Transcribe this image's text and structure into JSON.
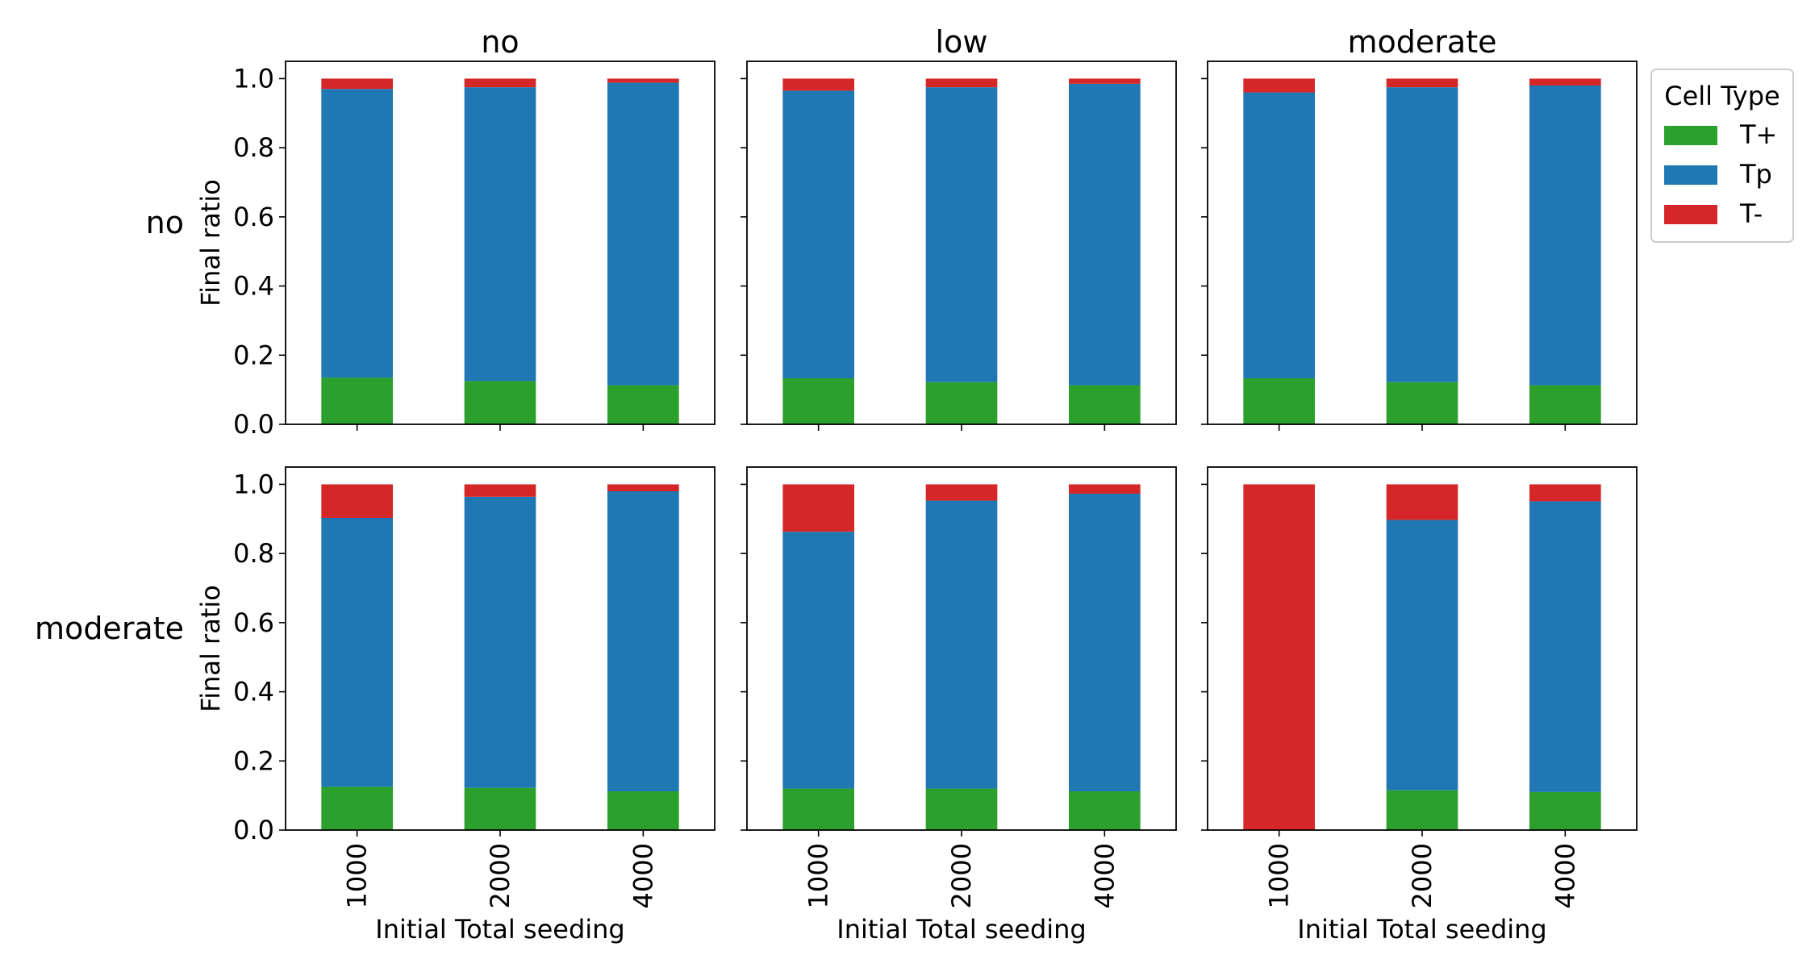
{
  "chart_data": {
    "type": "bar",
    "stacked": true,
    "categories": [
      "1000",
      "2000",
      "4000"
    ],
    "xlabel": "Initial Total seeding",
    "ylabel": "Final ratio",
    "ylim": [
      0,
      1.05
    ],
    "yticks": [
      "0.0",
      "0.2",
      "0.4",
      "0.6",
      "0.8",
      "1.0"
    ],
    "column_titles": [
      "no",
      "low",
      "moderate"
    ],
    "row_titles": [
      "no",
      "moderate"
    ],
    "legend": {
      "title": "Cell Type",
      "placement": "right, outside top",
      "entries": [
        {
          "name": "T+",
          "color": "#2ca02c"
        },
        {
          "name": "Tp",
          "color": "#1f77b4"
        },
        {
          "name": "T-",
          "color": "#d62728"
        }
      ]
    },
    "panels": [
      {
        "row": "no",
        "col": "no",
        "series": [
          {
            "name": "T+",
            "values": [
              0.135,
              0.125,
              0.113
            ]
          },
          {
            "name": "Tp",
            "values": [
              0.835,
              0.85,
              0.875
            ]
          },
          {
            "name": "T-",
            "values": [
              0.03,
              0.025,
              0.012
            ]
          }
        ]
      },
      {
        "row": "no",
        "col": "low",
        "series": [
          {
            "name": "T+",
            "values": [
              0.133,
              0.122,
              0.113
            ]
          },
          {
            "name": "Tp",
            "values": [
              0.832,
              0.853,
              0.872
            ]
          },
          {
            "name": "T-",
            "values": [
              0.035,
              0.025,
              0.015
            ]
          }
        ]
      },
      {
        "row": "no",
        "col": "moderate",
        "series": [
          {
            "name": "T+",
            "values": [
              0.133,
              0.122,
              0.113
            ]
          },
          {
            "name": "Tp",
            "values": [
              0.827,
              0.853,
              0.867
            ]
          },
          {
            "name": "T-",
            "values": [
              0.04,
              0.025,
              0.02
            ]
          }
        ]
      },
      {
        "row": "moderate",
        "col": "no",
        "series": [
          {
            "name": "T+",
            "values": [
              0.125,
              0.122,
              0.112
            ]
          },
          {
            "name": "Tp",
            "values": [
              0.778,
              0.842,
              0.868
            ]
          },
          {
            "name": "T-",
            "values": [
              0.097,
              0.036,
              0.02
            ]
          }
        ]
      },
      {
        "row": "moderate",
        "col": "low",
        "series": [
          {
            "name": "T+",
            "values": [
              0.12,
              0.12,
              0.112
            ]
          },
          {
            "name": "Tp",
            "values": [
              0.743,
              0.833,
              0.861
            ]
          },
          {
            "name": "T-",
            "values": [
              0.137,
              0.047,
              0.027
            ]
          }
        ]
      },
      {
        "row": "moderate",
        "col": "moderate",
        "series": [
          {
            "name": "T+",
            "values": [
              0.0,
              0.115,
              0.11
            ]
          },
          {
            "name": "Tp",
            "values": [
              0.0,
              0.782,
              0.841
            ]
          },
          {
            "name": "T-",
            "values": [
              1.0,
              0.103,
              0.049
            ]
          }
        ]
      }
    ]
  }
}
